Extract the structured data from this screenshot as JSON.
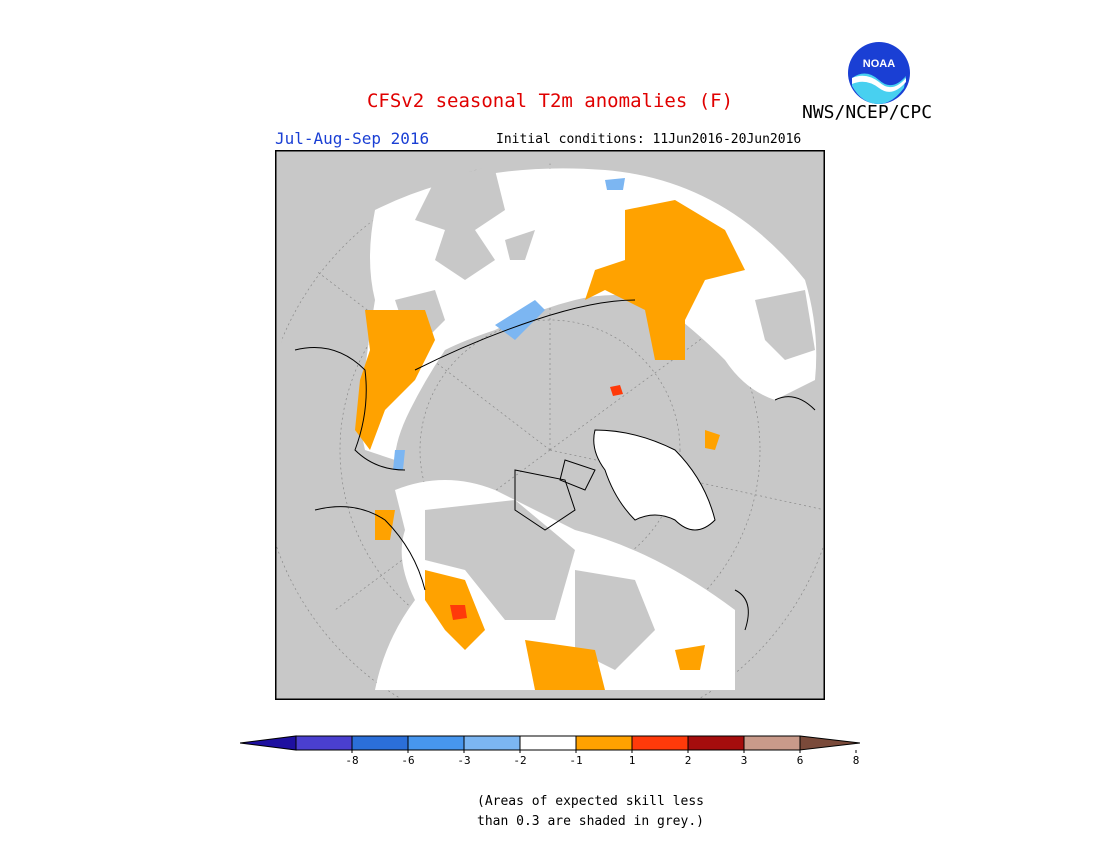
{
  "title": "CFSv2 seasonal T2m anomalies (F)",
  "agency": "NWS/NCEP/CPC",
  "logo_text": "NOAA",
  "season": "Jul-Aug-Sep 2016",
  "initial_conditions": "Initial conditions: 11Jun2016-20Jun2016",
  "note_line1": "(Areas of expected skill less",
  "note_line2": "than 0.3 are shaded in grey.)",
  "legend": {
    "labels": [
      "-8",
      "-6",
      "-3",
      "-2",
      "-1",
      "1",
      "2",
      "3",
      "6",
      "8"
    ],
    "colors": [
      "#1e10a0",
      "#4a3fcf",
      "#2b6fd9",
      "#4796ee",
      "#7cb6f2",
      "#ffffff",
      "#ffa200",
      "#ff3a0a",
      "#a50d0d",
      "#c99a8a",
      "#7a4a3a"
    ]
  },
  "map_colors": {
    "ocean_grey": "#c8c8c8",
    "land_white": "#ffffff",
    "warm": "#ffa200",
    "hot": "#ff3a0a",
    "hotter": "#b01010",
    "cool": "#7cb6f2"
  }
}
